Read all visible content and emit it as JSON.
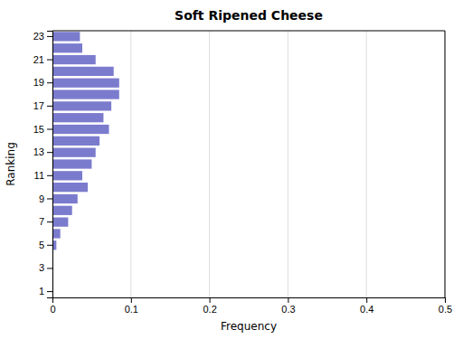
{
  "chart_data": {
    "type": "bar",
    "orientation": "horizontal",
    "title": "Soft Ripened Cheese",
    "xlabel": "Frequency",
    "ylabel": "Ranking",
    "categories": [
      "1",
      null,
      "3",
      null,
      "5",
      null,
      "7",
      null,
      "9",
      null,
      "11",
      null,
      "13",
      null,
      "15",
      null,
      "17",
      null,
      "19",
      null,
      "21",
      null,
      "23"
    ],
    "values": [
      0.0,
      0.0,
      0.0,
      0.0,
      0.005,
      0.01,
      0.02,
      0.025,
      0.032,
      0.045,
      0.038,
      0.05,
      0.055,
      0.06,
      0.072,
      0.065,
      0.075,
      0.085,
      0.085,
      0.078,
      0.055,
      0.038,
      0.035
    ],
    "color": "#7b7bce",
    "xlim": [
      0,
      0.5
    ],
    "xticks": [
      0,
      0.1,
      0.2,
      0.3,
      0.4,
      0.5
    ],
    "grid": true
  }
}
